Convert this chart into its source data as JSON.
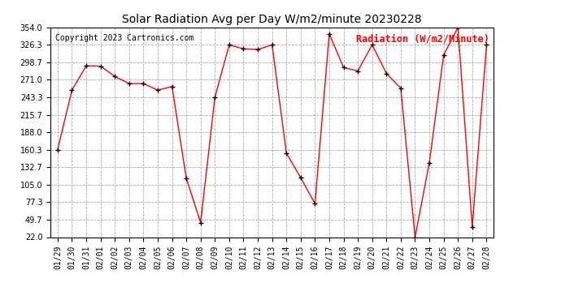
{
  "title": "Solar Radiation Avg per Day W/m2/minute 20230228",
  "copyright": "Copyright 2023 Cartronics.com",
  "legend_label": "Radiation (W/m2/Minute)",
  "dates": [
    "01/29",
    "01/30",
    "01/31",
    "02/01",
    "02/02",
    "02/03",
    "02/04",
    "02/05",
    "02/06",
    "02/07",
    "02/08",
    "02/09",
    "02/10",
    "02/11",
    "02/12",
    "02/13",
    "02/14",
    "02/15",
    "02/16",
    "02/17",
    "02/18",
    "02/19",
    "02/20",
    "02/21",
    "02/22",
    "02/23",
    "02/24",
    "02/25",
    "02/26",
    "02/27",
    "02/28"
  ],
  "values": [
    160.3,
    254.7,
    293.0,
    292.7,
    276.3,
    265.0,
    265.0,
    254.7,
    260.3,
    115.0,
    45.0,
    243.3,
    326.3,
    320.0,
    319.0,
    326.3,
    155.0,
    116.0,
    75.0,
    343.7,
    290.3,
    285.0,
    326.3,
    281.0,
    257.7,
    22.0,
    140.0,
    310.3,
    354.0,
    38.0,
    326.3
  ],
  "line_color": "red",
  "marker_color": "black",
  "bg_color": "#ffffff",
  "grid_color": "#aaaaaa",
  "yticks": [
    22.0,
    49.7,
    77.3,
    105.0,
    132.7,
    160.3,
    188.0,
    215.7,
    243.3,
    271.0,
    298.7,
    326.3,
    354.0
  ],
  "ymin": 22.0,
  "ymax": 354.0,
  "title_fontsize": 10,
  "axis_fontsize": 7,
  "copyright_fontsize": 7,
  "legend_fontsize": 8.5
}
